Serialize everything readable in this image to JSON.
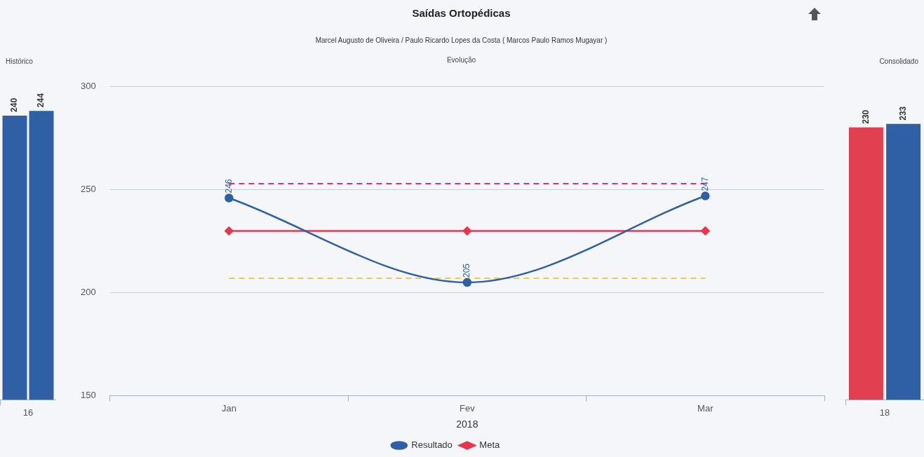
{
  "chart_data": [
    {
      "type": "bar",
      "title": "Histórico",
      "categories": [
        "16"
      ],
      "data_labels": true,
      "series": [
        {
          "color": "#2f5fa5",
          "values": [
            240
          ]
        },
        {
          "color": "#2f5fa5",
          "values": [
            244
          ]
        }
      ]
    },
    {
      "type": "line",
      "title": "Saídas Ortopédicas",
      "subtitle": "Marcel Augusto de Oliveira / Paulo Ricardo Lopes da Costa ( Marcos Paulo Ramos Mugayar )",
      "annotations": [
        "Evolução"
      ],
      "xlabel": "2018",
      "categories": [
        "Jan",
        "Fev",
        "Mar"
      ],
      "ylim": [
        150,
        300
      ],
      "yticks": [
        150,
        200,
        250,
        300
      ],
      "grid": "y",
      "legend": "bottom",
      "series": [
        {
          "name": "Resultado",
          "color": "#2f5fa5",
          "marker": "circle",
          "values": [
            246,
            205,
            247
          ],
          "value_labels": [
            "246",
            "205",
            "247"
          ]
        },
        {
          "name": "Meta",
          "color": "#e8364f",
          "marker": "diamond",
          "values": [
            230,
            230,
            230
          ]
        }
      ],
      "ref_lines": [
        {
          "axis": "y",
          "value": 253,
          "color": "#e0307a",
          "line_style": "dashed"
        },
        {
          "axis": "y",
          "value": 207,
          "color": "#f0c850",
          "line_style": "dashed"
        }
      ]
    },
    {
      "type": "bar",
      "title": "Consolidado",
      "categories": [
        "18"
      ],
      "data_labels": true,
      "series": [
        {
          "color": "#e0404f",
          "values": [
            230
          ]
        },
        {
          "color": "#2f5fa5",
          "values": [
            233
          ]
        }
      ]
    }
  ]
}
